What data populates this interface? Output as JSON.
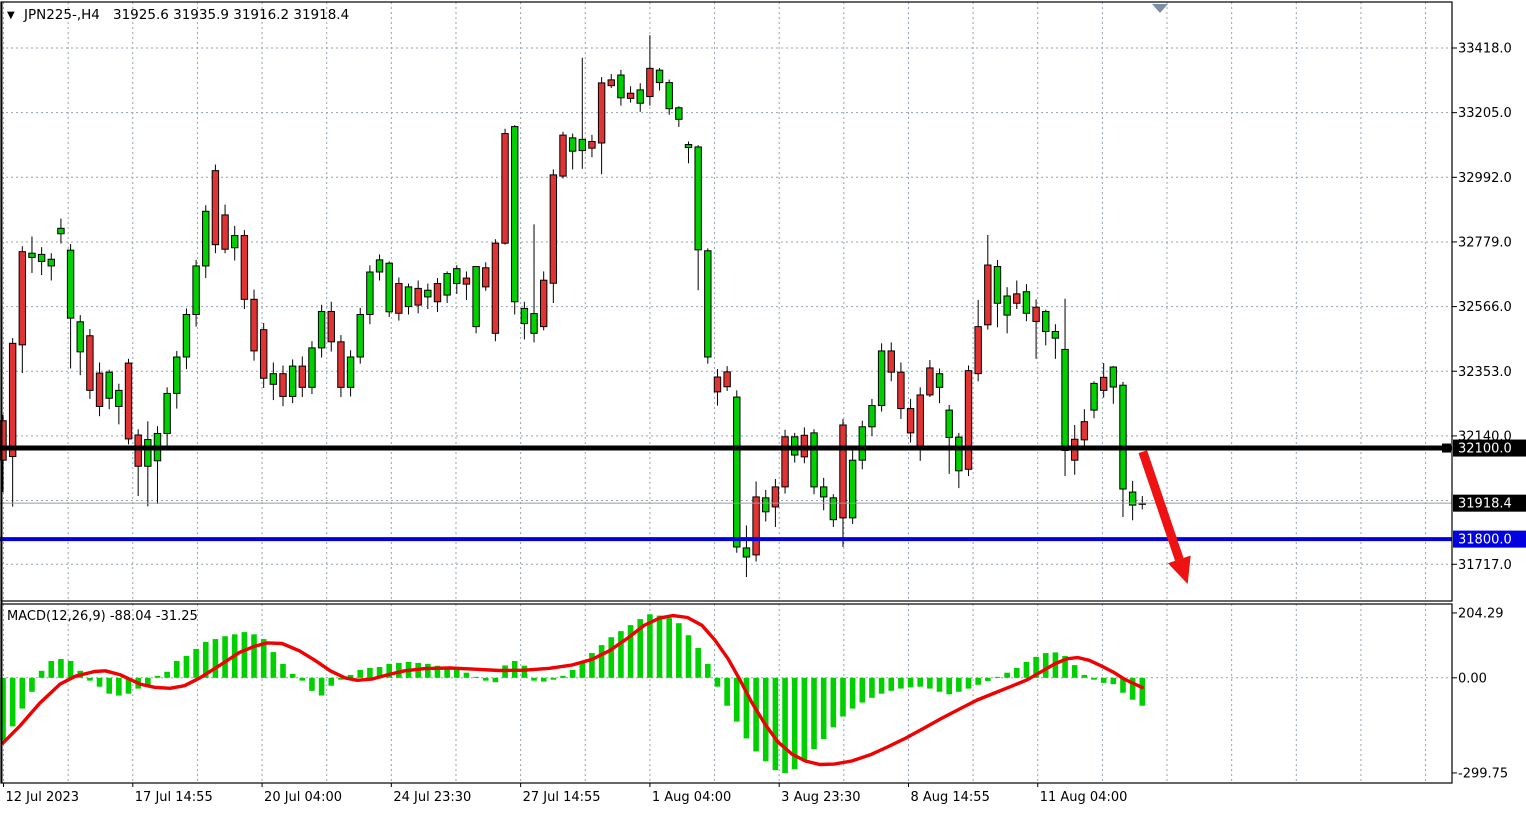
{
  "header": {
    "dropdown_icon": "▼",
    "symbol_period": "JPN225-,H4",
    "quote_line": "31925.6 31935.9 31916.2 31918.4"
  },
  "colors": {
    "background": "#ffffff",
    "grid": "#92A3B4",
    "bull_fill": "#00CF00",
    "bear_fill": "#E03434",
    "wick": "#000000",
    "histogram": "#00D000",
    "signal_line": "#F00000",
    "resistance_line": "#000000",
    "support_line": "#0000E0",
    "bid_line": "#9A9A9A",
    "arrow": "#EE1212",
    "badge_text": "#ffffff",
    "axis_text": "#000000",
    "shift_marker": "#7E8FA0"
  },
  "chart_data": {
    "type": "candlestick",
    "title": "JPN225-,H4",
    "ohlc_display": {
      "open": "31925.6",
      "high": "31935.9",
      "low": "31916.2",
      "close": "31918.4"
    },
    "y_axis": {
      "side": "right",
      "tick_labels": [
        "33418.0",
        "33205.0",
        "32992.0",
        "32779.0",
        "32566.0",
        "32353.0",
        "32140.0",
        "31717.0"
      ],
      "tick_values": [
        33418,
        33205,
        32992,
        32779,
        32566,
        32353,
        32140,
        31717
      ],
      "grid_only_values": [
        31927
      ],
      "ylim": [
        31594,
        33566
      ]
    },
    "x_axis": {
      "labels": [
        "12 Jul 2023",
        "17 Jul 14:55",
        "20 Jul 04:00",
        "24 Jul 23:30",
        "27 Jul 14:55",
        "1 Aug 04:00",
        "3 Aug 23:30",
        "8 Aug 14:55",
        "11 Aug 04:00"
      ],
      "label_grid_indices": [
        0,
        2,
        4,
        6,
        8,
        10,
        12,
        14,
        16
      ],
      "grid_count": 23
    },
    "candles": [
      [
        32190,
        32210,
        31955,
        32060
      ],
      [
        32445,
        32462,
        31907,
        32072
      ],
      [
        32747,
        32765,
        32347,
        32440
      ],
      [
        32728,
        32797,
        32677,
        32742
      ],
      [
        32715,
        32762,
        32670,
        32738
      ],
      [
        32700,
        32742,
        32652,
        32722
      ],
      [
        32806,
        32856,
        32774,
        32824
      ],
      [
        32528,
        32772,
        32362,
        32752
      ],
      [
        32417,
        32538,
        32340,
        32516
      ],
      [
        32470,
        32492,
        32262,
        32290
      ],
      [
        32347,
        32382,
        32205,
        32237
      ],
      [
        32264,
        32358,
        32228,
        32350
      ],
      [
        32237,
        32312,
        32178,
        32290
      ],
      [
        32380,
        32394,
        32112,
        32130
      ],
      [
        32143,
        32162,
        31942,
        32040
      ],
      [
        32040,
        32188,
        31908,
        32128
      ],
      [
        32058,
        32172,
        31916,
        32148
      ],
      [
        32148,
        32300,
        32098,
        32280
      ],
      [
        32280,
        32420,
        32230,
        32400
      ],
      [
        32400,
        32560,
        32360,
        32540
      ],
      [
        32540,
        32720,
        32500,
        32700
      ],
      [
        32700,
        32900,
        32660,
        32880
      ],
      [
        33014,
        33034,
        32742,
        32770
      ],
      [
        32868,
        32902,
        32742,
        32755
      ],
      [
        32760,
        32832,
        32718,
        32800
      ],
      [
        32800,
        32818,
        32558,
        32590
      ],
      [
        32590,
        32622,
        32388,
        32420
      ],
      [
        32490,
        32512,
        32298,
        32330
      ],
      [
        32310,
        32382,
        32258,
        32345
      ],
      [
        32345,
        32372,
        32238,
        32270
      ],
      [
        32270,
        32392,
        32248,
        32370
      ],
      [
        32370,
        32402,
        32268,
        32300
      ],
      [
        32300,
        32452,
        32278,
        32430
      ],
      [
        32430,
        32572,
        32398,
        32550
      ],
      [
        32550,
        32582,
        32418,
        32450
      ],
      [
        32450,
        32472,
        32268,
        32300
      ],
      [
        32300,
        32422,
        32270,
        32400
      ],
      [
        32400,
        32562,
        32378,
        32540
      ],
      [
        32540,
        32702,
        32508,
        32680
      ],
      [
        32680,
        32738,
        32652,
        32720
      ],
      [
        32549,
        32715,
        32532,
        32709
      ],
      [
        32642,
        32662,
        32520,
        32544
      ],
      [
        32566,
        32642,
        32540,
        32631
      ],
      [
        32626,
        32652,
        32544,
        32571
      ],
      [
        32598,
        32642,
        32558,
        32620
      ],
      [
        32642,
        32660,
        32548,
        32582
      ],
      [
        32604,
        32682,
        32578,
        32675
      ],
      [
        32642,
        32702,
        32608,
        32691
      ],
      [
        32660,
        32682,
        32588,
        32640
      ],
      [
        32500,
        32700,
        32478,
        32698
      ],
      [
        32694,
        32712,
        32618,
        32631
      ],
      [
        32775,
        32788,
        32452,
        32478
      ],
      [
        33136,
        33152,
        32770,
        32775
      ],
      [
        32582,
        33164,
        32540,
        33159
      ],
      [
        32510,
        32582,
        32458,
        32560
      ],
      [
        32478,
        32837,
        32448,
        32543
      ],
      [
        32653,
        32682,
        32488,
        32500
      ],
      [
        33000,
        33018,
        32578,
        32643
      ],
      [
        33131,
        33142,
        32988,
        32996
      ],
      [
        33078,
        33136,
        33018,
        33122
      ],
      [
        33080,
        33386,
        33020,
        33117
      ],
      [
        33110,
        33132,
        33058,
        33088
      ],
      [
        33303,
        33322,
        33002,
        33105
      ],
      [
        33313,
        33332,
        33286,
        33294
      ],
      [
        33254,
        33346,
        33228,
        33329
      ],
      [
        33269,
        33292,
        33238,
        33252
      ],
      [
        33236,
        33302,
        33208,
        33280
      ],
      [
        33351,
        33460,
        33228,
        33258
      ],
      [
        33304,
        33352,
        33278,
        33345
      ],
      [
        33218,
        33314,
        33198,
        33304
      ],
      [
        33183,
        33226,
        33158,
        33221
      ],
      [
        33090,
        33110,
        33038,
        33100
      ],
      [
        32753,
        33098,
        32620,
        33092
      ],
      [
        32400,
        32758,
        32378,
        32750
      ],
      [
        32334,
        32360,
        32240,
        32285
      ],
      [
        32351,
        32370,
        32288,
        32302
      ],
      [
        31774,
        32290,
        31755,
        32268
      ],
      [
        31741,
        31845,
        31675,
        31771
      ],
      [
        31939,
        31990,
        31726,
        31748
      ],
      [
        31890,
        31962,
        31858,
        31936
      ],
      [
        31972,
        31998,
        31840,
        31906
      ],
      [
        32137,
        32160,
        31950,
        31972
      ],
      [
        32077,
        32150,
        32052,
        32137
      ],
      [
        32142,
        32168,
        32050,
        32071
      ],
      [
        31972,
        32162,
        31948,
        32150
      ],
      [
        31939,
        32002,
        31895,
        31972
      ],
      [
        31864,
        31948,
        31840,
        31936
      ],
      [
        32176,
        32196,
        31774,
        31870
      ],
      [
        31870,
        32095,
        31850,
        32060
      ],
      [
        32060,
        32190,
        32030,
        32170
      ],
      [
        32170,
        32262,
        32140,
        32240
      ],
      [
        32240,
        32445,
        32220,
        32420
      ],
      [
        32420,
        32448,
        32320,
        32350
      ],
      [
        32350,
        32382,
        32196,
        32230
      ],
      [
        32230,
        32262,
        32118,
        32150
      ],
      [
        32275,
        32300,
        32058,
        32100
      ],
      [
        32364,
        32390,
        32268,
        32275
      ],
      [
        32300,
        32362,
        32248,
        32345
      ],
      [
        32135,
        32242,
        32015,
        32225
      ],
      [
        32025,
        32150,
        31968,
        32136
      ],
      [
        32355,
        32372,
        32008,
        32030
      ],
      [
        32500,
        32588,
        32320,
        32345
      ],
      [
        32703,
        32802,
        32490,
        32506
      ],
      [
        32577,
        32720,
        32498,
        32698
      ],
      [
        32538,
        32630,
        32478,
        32601
      ],
      [
        32608,
        32652,
        32558,
        32577
      ],
      [
        32544,
        32640,
        32518,
        32615
      ],
      [
        32564,
        32590,
        32394,
        32517
      ],
      [
        32484,
        32556,
        32438,
        32550
      ],
      [
        32462,
        32508,
        32394,
        32484
      ],
      [
        32092,
        32592,
        32008,
        32425
      ],
      [
        32129,
        32176,
        32012,
        32060
      ],
      [
        32187,
        32228,
        32105,
        32127
      ],
      [
        32225,
        32320,
        32198,
        32313
      ],
      [
        32333,
        32380,
        32266,
        32290
      ],
      [
        32301,
        32370,
        32246,
        32367
      ],
      [
        31965,
        32318,
        31873,
        32307
      ],
      [
        31912,
        31992,
        31862,
        31955
      ],
      [
        31915,
        31942,
        31898,
        31918
      ]
    ],
    "levels": [
      {
        "name": "resistance-line",
        "value": 32100.0,
        "label": "32100.0",
        "color": "#000000",
        "width": 5,
        "badge_bg": "#000000"
      },
      {
        "name": "support-line",
        "value": 31800.0,
        "label": "31800.0",
        "color": "#0000E0",
        "width": 4,
        "badge_bg": "#0000E0"
      },
      {
        "name": "bid-price-line",
        "value": 31918.4,
        "label": "31918.4",
        "color": "#9A9A9A",
        "width": 1,
        "badge_bg": "#000000"
      }
    ],
    "arrow": {
      "from_index": 118.05,
      "from_price": 32088,
      "to_index": 122.7,
      "to_price": 31652,
      "color": "#EE1212"
    },
    "shift_marker_x": 1160,
    "macd": {
      "label": "MACD(12,26,9) -88.04 -31.25",
      "params": "12,26,9",
      "macd_value": "-88.04",
      "signal_value": "-31.25",
      "axis_tick_labels": [
        "204.29",
        "0.00",
        "-299.75"
      ],
      "axis_tick_values": [
        204.29,
        0,
        -299.75
      ],
      "histogram": [
        -197,
        -153,
        -97,
        -44,
        22,
        53,
        59,
        53,
        22,
        -9,
        -28,
        -50,
        -56,
        -50,
        -34,
        -22,
        6,
        19,
        53,
        69,
        91,
        113,
        122,
        131,
        137,
        144,
        137,
        122,
        81,
        44,
        12,
        -9,
        -41,
        -56,
        -25,
        -6,
        9,
        25,
        31,
        34,
        44,
        47,
        50,
        47,
        44,
        38,
        31,
        25,
        16,
        3,
        -9,
        -14,
        39,
        53,
        38,
        -9,
        -12,
        -6,
        6,
        25,
        50,
        78,
        103,
        128,
        147,
        166,
        185,
        200,
        196,
        188,
        172,
        134,
        94,
        44,
        -28,
        -88,
        -138,
        -191,
        -232,
        -263,
        -291,
        -300,
        -288,
        -260,
        -225,
        -193,
        -156,
        -122,
        -97,
        -78,
        -63,
        -50,
        -41,
        -34,
        -30,
        -28,
        -34,
        -44,
        -52,
        -44,
        -34,
        -22,
        -10,
        3,
        16,
        31,
        50,
        66,
        78,
        80,
        69,
        40,
        9,
        -6,
        -16,
        -20,
        -47,
        -69,
        -88
      ],
      "signal": [
        [
          0,
          -205
        ],
        [
          1.8,
          -150
        ],
        [
          3.8,
          -80
        ],
        [
          5.9,
          -20
        ],
        [
          7.5,
          5
        ],
        [
          9.5,
          20
        ],
        [
          10.6,
          22
        ],
        [
          12.1,
          10
        ],
        [
          14.2,
          -20
        ],
        [
          15.7,
          -30
        ],
        [
          17.3,
          -33
        ],
        [
          18.8,
          -25
        ],
        [
          20.4,
          0
        ],
        [
          22.5,
          40
        ],
        [
          24.5,
          80
        ],
        [
          26.1,
          100
        ],
        [
          27.4,
          110
        ],
        [
          28.9,
          108
        ],
        [
          30.7,
          85
        ],
        [
          32.3,
          55
        ],
        [
          33.9,
          22
        ],
        [
          35.4,
          0
        ],
        [
          36.7,
          -8
        ],
        [
          38.2,
          -4
        ],
        [
          39.9,
          10
        ],
        [
          41.6,
          22
        ],
        [
          43.7,
          29
        ],
        [
          46.3,
          31
        ],
        [
          48.9,
          27
        ],
        [
          51.4,
          23
        ],
        [
          54,
          24
        ],
        [
          56.6,
          30
        ],
        [
          58.9,
          40
        ],
        [
          61,
          58
        ],
        [
          62.8,
          85
        ],
        [
          64.7,
          125
        ],
        [
          66.4,
          165
        ],
        [
          68,
          188
        ],
        [
          69.4,
          196
        ],
        [
          70.9,
          190
        ],
        [
          72.4,
          165
        ],
        [
          73.7,
          120
        ],
        [
          75.1,
          60
        ],
        [
          76.3,
          -5
        ],
        [
          77.5,
          -75
        ],
        [
          78.9,
          -145
        ],
        [
          80.2,
          -200
        ],
        [
          81.7,
          -240
        ],
        [
          83.1,
          -262
        ],
        [
          84.6,
          -273
        ],
        [
          86.1,
          -272
        ],
        [
          87.9,
          -262
        ],
        [
          89.8,
          -243
        ],
        [
          91.6,
          -218
        ],
        [
          93.5,
          -190
        ],
        [
          95.3,
          -160
        ],
        [
          97.2,
          -128
        ],
        [
          99.1,
          -98
        ],
        [
          100.9,
          -70
        ],
        [
          102.7,
          -48
        ],
        [
          104.4,
          -27
        ],
        [
          106.1,
          -6
        ],
        [
          107.7,
          22
        ],
        [
          109,
          45
        ],
        [
          110.2,
          60
        ],
        [
          111.3,
          64
        ],
        [
          112.5,
          55
        ],
        [
          113.7,
          38
        ],
        [
          115,
          18
        ],
        [
          116.2,
          -5
        ],
        [
          117.1,
          -18
        ],
        [
          118,
          -31
        ]
      ]
    }
  }
}
